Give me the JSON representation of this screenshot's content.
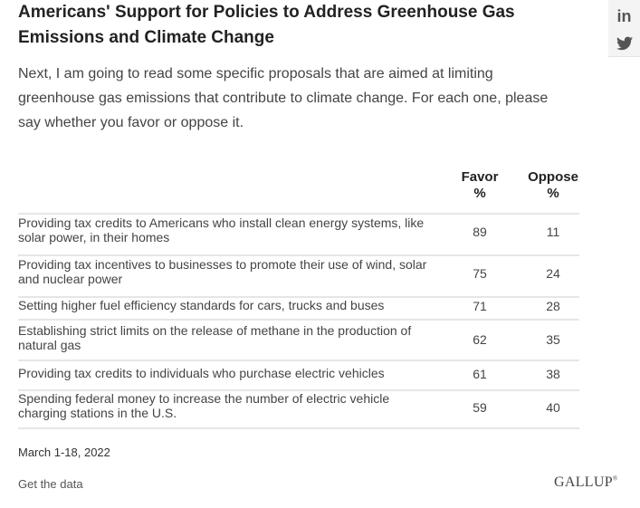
{
  "title": "Americans' Support for Policies to Address Greenhouse Gas Emissions and Climate Change",
  "intro": "Next, I am going to read some specific proposals that are aimed at limiting greenhouse gas emissions that contribute to climate change. For each one, please say whether you favor or oppose it.",
  "social": {
    "linkedin_label": "in",
    "twitter_icon": "twitter-bird-icon"
  },
  "colors": {
    "divider": "#e6e6e6",
    "text": "#444444",
    "panel": "#f4f4f4"
  },
  "chart_data": {
    "type": "table",
    "columns": [
      {
        "line1": "Favor",
        "line2": "%"
      },
      {
        "line1": "Oppose",
        "line2": "%"
      }
    ],
    "rows": [
      {
        "label": "Providing tax credits to Americans who install clean energy systems, like solar power, in their homes",
        "favor": 89,
        "oppose": 11
      },
      {
        "label": "Providing tax incentives to businesses to promote their use of wind, solar and nuclear power",
        "favor": 75,
        "oppose": 24
      },
      {
        "label": "Setting higher fuel efficiency standards for cars, trucks and buses",
        "favor": 71,
        "oppose": 28
      },
      {
        "label": "Establishing strict limits on the release of methane in the production of natural gas",
        "favor": 62,
        "oppose": 35
      },
      {
        "label": "Providing tax credits to individuals who purchase electric vehicles",
        "favor": 61,
        "oppose": 38
      },
      {
        "label": "Spending federal money to increase the number of electric vehicle charging stations in the U.S.",
        "favor": 59,
        "oppose": 40
      }
    ]
  },
  "footer": {
    "date": "March 1-18, 2022",
    "get_data": "Get the data",
    "logo": "GALLUP",
    "logo_mark": "®"
  }
}
